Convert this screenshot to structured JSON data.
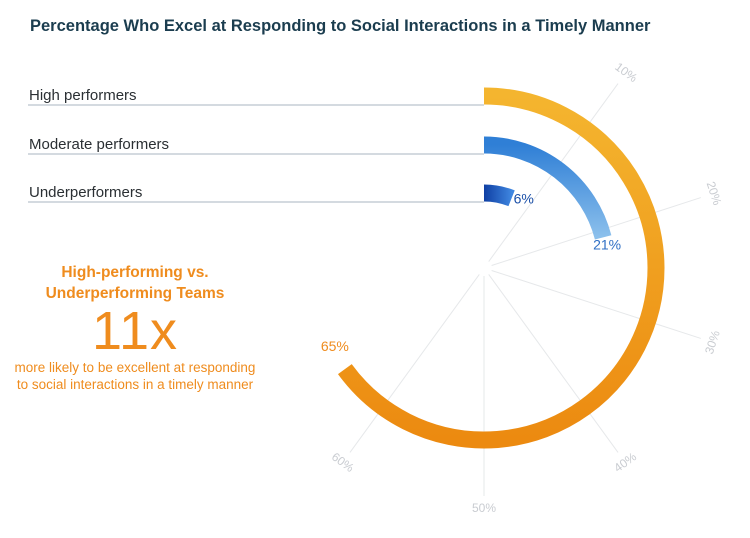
{
  "chart_data": {
    "type": "radial-bar",
    "title": "Percentage Who Excel at Responding to Social Interactions in a Timely Manner",
    "categories": [
      "High performers",
      "Moderate performers",
      "Underperformers"
    ],
    "values": [
      65,
      21,
      6
    ],
    "value_labels": [
      "65%",
      "21%",
      "6%"
    ],
    "axis_ticks": [
      10,
      20,
      30,
      40,
      50,
      60
    ],
    "axis_tick_labels": [
      "10%",
      "20%",
      "30%",
      "40%",
      "50%",
      "60%"
    ],
    "axis_range": [
      0,
      100
    ],
    "grid": true,
    "legend": "none",
    "colors": {
      "High performers": "#f0a21d",
      "Moderate performers": "#4a90d9",
      "Underperformers": "#1a55b8"
    }
  },
  "callout": {
    "heading": "High-performing vs. Underperforming Teams",
    "big_number": "11x",
    "description": "more likely to be excellent at responding to social interactions in a timely manner",
    "color": "#ef8c1e"
  }
}
